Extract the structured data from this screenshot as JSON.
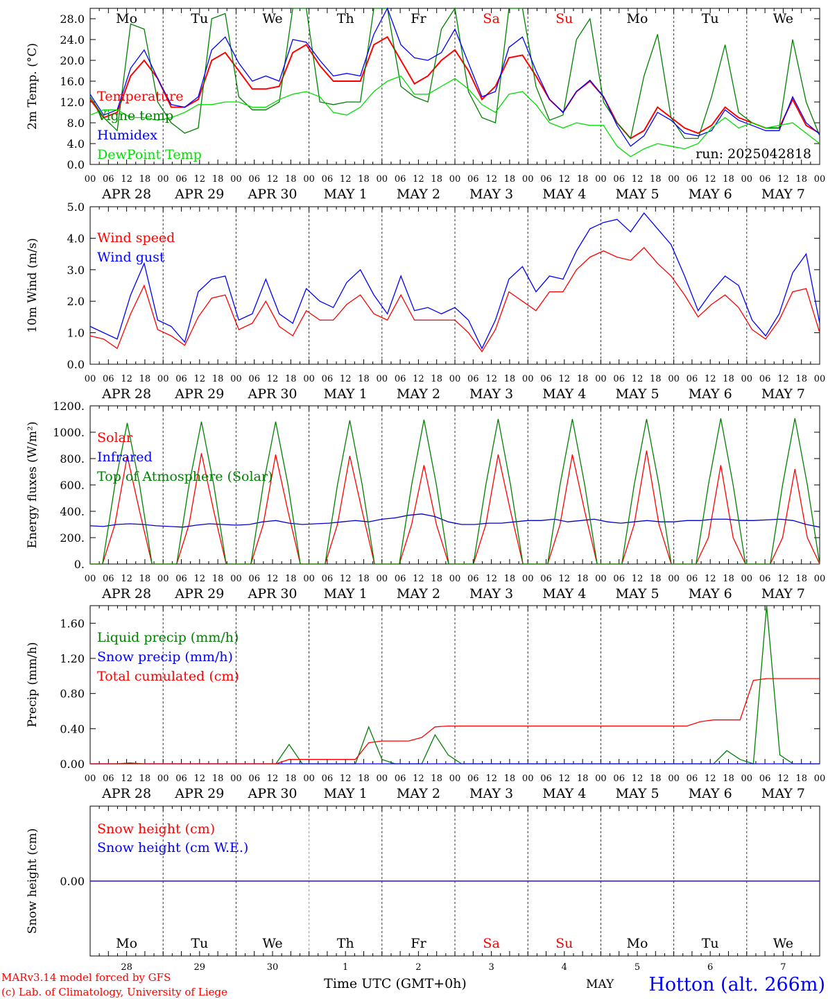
{
  "colors": {
    "red": "#ff0000",
    "green": "#008000",
    "lightgreen": "#00e000",
    "blue": "#0000ff",
    "darkblue": "#0000cc",
    "weekend": "#ff0000"
  },
  "days": [
    "Mo",
    "Tu",
    "We",
    "Th",
    "Fr",
    "Sa",
    "Su",
    "Mo",
    "Tu",
    "We"
  ],
  "weekend_days": [
    5,
    6
  ],
  "dates": [
    "APR 28",
    "APR 29",
    "APR 30",
    "MAY  1",
    "MAY  2",
    "MAY  3",
    "MAY  4",
    "MAY  5",
    "MAY  6",
    "MAY  7"
  ],
  "hour_ticks": [
    "00",
    "06",
    "12",
    "18"
  ],
  "final_tick": "00",
  "run_label": "run: 2025042818",
  "bottom": {
    "day_numbers": [
      "28",
      "29",
      "30",
      "1",
      "2",
      "3",
      "4",
      "5",
      "6",
      "7"
    ],
    "month": "MAY",
    "time_label": "Time UTC (GMT+0h)",
    "credit1": "MARv3.14 model forced by GFS",
    "credit2": "(c) Lab. of Climatology, University of Liege",
    "station": "Hotton (alt. 266m)"
  },
  "chart_data": [
    {
      "type": "line",
      "ylabel": "2m Temp. (°C)",
      "ylim": [
        0,
        30
      ],
      "yticks": [
        "0.0",
        "4.0",
        "8.0",
        "12.0",
        "16.0",
        "20.0",
        "24.0",
        "28.0"
      ],
      "ytick_values": [
        0,
        4,
        8,
        12,
        16,
        20,
        24,
        28
      ],
      "legend": [
        "Temperature",
        "Vigne temp",
        "Humidex",
        "DewPoint Temp"
      ],
      "x_hours_step": 6,
      "series": [
        {
          "name": "Temperature",
          "color": "red",
          "values": [
            12.5,
            9,
            10,
            17,
            20,
            16.5,
            11,
            11,
            12.5,
            20,
            21.5,
            18,
            14.5,
            14.5,
            15,
            21.5,
            23,
            19,
            16,
            16,
            16,
            23,
            24.5,
            20,
            15.5,
            17,
            20,
            22,
            18,
            12.5,
            15,
            20.5,
            21,
            17,
            12.5,
            10,
            14,
            16,
            13,
            8,
            5,
            6.5,
            11,
            9,
            7,
            6,
            7.5,
            11,
            9,
            8,
            7,
            7,
            12.5,
            7.5,
            6
          ]
        },
        {
          "name": "Vigne temp",
          "color": "green",
          "values": [
            13,
            9,
            6.5,
            27,
            26,
            12,
            8,
            6,
            7,
            28,
            29,
            13,
            10.5,
            10.5,
            12,
            30,
            30,
            12,
            11.5,
            12,
            12,
            30,
            30,
            15,
            13,
            12,
            26,
            30,
            14,
            9,
            8,
            30,
            30,
            15,
            8.5,
            9.5,
            24,
            28,
            12,
            8,
            5,
            17,
            25,
            9,
            5,
            5,
            13,
            23,
            10,
            8,
            7,
            7,
            24,
            12,
            5.5
          ]
        },
        {
          "name": "Humidex",
          "color": "blue",
          "values": [
            13.5,
            9.5,
            10.5,
            18.5,
            22,
            16.5,
            11.5,
            11,
            13,
            22,
            24.5,
            19.5,
            16,
            17,
            16,
            24,
            23.5,
            20,
            17,
            17.5,
            17,
            25,
            30,
            23,
            20.5,
            20,
            21.5,
            26,
            19.5,
            13,
            14,
            22.5,
            24.5,
            18,
            12.5,
            10,
            14,
            16.2,
            13,
            7.5,
            3.5,
            5.5,
            10,
            8.5,
            6,
            5.5,
            6.5,
            10.5,
            8.5,
            7.5,
            6.5,
            6.5,
            13,
            8,
            5.8
          ]
        },
        {
          "name": "DewPoint Temp",
          "color": "lightgreen",
          "values": [
            9.5,
            10.5,
            10.5,
            9,
            9,
            8.5,
            9,
            10,
            11.5,
            11.5,
            12,
            12,
            11,
            11,
            12.5,
            13.5,
            14,
            13,
            10,
            9.5,
            11,
            14,
            16,
            17,
            13.5,
            13.5,
            15,
            16.5,
            14.5,
            11.5,
            10,
            13.5,
            14,
            11.5,
            8,
            7,
            8,
            7.5,
            7.5,
            3.5,
            1.5,
            3,
            4,
            3.5,
            3,
            4,
            7,
            9,
            7,
            8,
            7,
            7.5,
            8,
            6,
            4
          ]
        }
      ]
    },
    {
      "type": "line",
      "ylabel": "10m Wind (m/s)",
      "ylim": [
        0,
        5
      ],
      "yticks": [
        "0.0",
        "1.0",
        "2.0",
        "3.0",
        "4.0",
        "5.0"
      ],
      "ytick_values": [
        0,
        1,
        2,
        3,
        4,
        5
      ],
      "legend": [
        "Wind speed",
        "Wind gust"
      ],
      "x_hours_step": 6,
      "series": [
        {
          "name": "Wind speed",
          "color": "red",
          "values": [
            0.9,
            0.8,
            0.5,
            1.6,
            2.5,
            1.1,
            0.9,
            0.6,
            1.5,
            2.1,
            2.2,
            1.1,
            1.3,
            2.0,
            1.2,
            0.9,
            1.7,
            1.4,
            1.4,
            1.9,
            2.2,
            1.6,
            1.4,
            2.2,
            1.4,
            1.4,
            1.4,
            1.4,
            1.0,
            0.4,
            1.1,
            2.3,
            2.0,
            1.7,
            2.3,
            2.3,
            3.0,
            3.4,
            3.6,
            3.4,
            3.3,
            3.7,
            3.2,
            2.8,
            2.2,
            1.5,
            1.9,
            2.2,
            1.8,
            1.1,
            0.8,
            1.4,
            2.3,
            2.4,
            1.0
          ]
        },
        {
          "name": "Wind gust",
          "color": "blue",
          "values": [
            1.2,
            1.0,
            0.8,
            2.2,
            3.2,
            1.4,
            1.2,
            0.7,
            2.3,
            2.7,
            2.8,
            1.4,
            1.6,
            2.7,
            1.6,
            1.3,
            2.4,
            2.0,
            1.8,
            2.6,
            3.0,
            2.2,
            1.6,
            2.8,
            1.7,
            1.8,
            1.6,
            1.8,
            1.4,
            0.5,
            1.4,
            2.7,
            3.1,
            2.3,
            2.8,
            2.7,
            3.6,
            4.3,
            4.5,
            4.6,
            4.2,
            4.8,
            4.3,
            3.8,
            2.8,
            1.7,
            2.3,
            2.8,
            2.5,
            1.4,
            0.9,
            1.6,
            2.9,
            3.5,
            1.3
          ]
        }
      ]
    },
    {
      "type": "line",
      "ylabel": "Energy fluxes (W/m²)",
      "ylim": [
        0,
        1200
      ],
      "yticks": [
        "0.",
        "200.",
        "400.",
        "600.",
        "800.",
        "1000.",
        "1200."
      ],
      "ytick_values": [
        0,
        200,
        400,
        600,
        800,
        1000,
        1200
      ],
      "legend": [
        "Solar",
        "Infrared",
        "Top of Atmosphere (Solar)"
      ],
      "x_hours_step": 6,
      "series": [
        {
          "name": "Solar",
          "color": "red",
          "values": [
            0,
            0,
            300,
            820,
            400,
            0,
            0,
            0,
            300,
            840,
            400,
            0,
            0,
            0,
            300,
            830,
            400,
            0,
            0,
            0,
            300,
            820,
            400,
            0,
            0,
            0,
            300,
            750,
            300,
            0,
            0,
            0,
            300,
            830,
            400,
            0,
            0,
            0,
            300,
            830,
            400,
            0,
            0,
            0,
            300,
            860,
            300,
            0,
            0,
            0,
            200,
            750,
            200,
            0,
            0,
            0,
            200,
            720,
            200,
            0
          ]
        },
        {
          "name": "Infrared",
          "color": "darkblue",
          "values": [
            290,
            285,
            300,
            305,
            300,
            290,
            285,
            280,
            295,
            305,
            300,
            295,
            300,
            320,
            330,
            310,
            300,
            305,
            310,
            320,
            330,
            320,
            340,
            350,
            370,
            380,
            360,
            320,
            300,
            300,
            310,
            310,
            320,
            330,
            330,
            340,
            320,
            330,
            340,
            320,
            310,
            320,
            330,
            320,
            320,
            330,
            330,
            340,
            340,
            330,
            330,
            335,
            340,
            330,
            300,
            280
          ]
        },
        {
          "name": "Top of Atmosphere (Solar)",
          "color": "green",
          "values": [
            0,
            0,
            600,
            1070,
            600,
            0,
            0,
            0,
            600,
            1080,
            600,
            0,
            0,
            0,
            600,
            1080,
            600,
            0,
            0,
            0,
            600,
            1090,
            600,
            0,
            0,
            0,
            600,
            1095,
            600,
            0,
            0,
            0,
            600,
            1100,
            600,
            0,
            0,
            0,
            600,
            1100,
            600,
            0,
            0,
            0,
            600,
            1100,
            600,
            0,
            0,
            0,
            600,
            1105,
            600,
            0,
            0,
            0,
            600,
            1105,
            600,
            0
          ]
        }
      ]
    },
    {
      "type": "line",
      "ylabel": "Precip (mm/h)",
      "ylim": [
        0,
        1.8
      ],
      "yticks": [
        "0.00",
        "0.40",
        "0.80",
        "1.20",
        "1.60"
      ],
      "ytick_values": [
        0,
        0.4,
        0.8,
        1.2,
        1.6
      ],
      "legend": [
        "Liquid precip (mm/h)",
        "Snow precip (mm/h)",
        "Total cumulated (cm)"
      ],
      "x_hours_step": 6,
      "series": [
        {
          "name": "Liquid precip (mm/h)",
          "color": "green",
          "values": [
            0,
            0,
            0,
            0.01,
            0,
            0,
            0,
            0,
            0,
            0,
            0,
            0,
            0,
            0,
            0,
            0.22,
            0,
            0,
            0,
            0,
            0,
            0.42,
            0.05,
            0,
            0,
            0,
            0.33,
            0.1,
            0,
            0,
            0,
            0,
            0,
            0,
            0,
            0,
            0,
            0,
            0,
            0,
            0,
            0,
            0,
            0,
            0,
            0,
            0,
            0,
            0.15,
            0.05,
            0,
            1.8,
            0.1,
            0,
            0,
            0
          ]
        },
        {
          "name": "Snow precip (mm/h)",
          "color": "blue",
          "values": [
            0,
            0,
            0,
            0,
            0,
            0,
            0,
            0,
            0,
            0,
            0,
            0,
            0,
            0,
            0,
            0,
            0,
            0,
            0,
            0,
            0,
            0,
            0,
            0,
            0,
            0,
            0,
            0,
            0,
            0,
            0,
            0,
            0,
            0,
            0,
            0,
            0,
            0,
            0,
            0,
            0,
            0,
            0,
            0,
            0,
            0,
            0,
            0,
            0,
            0,
            0,
            0,
            0,
            0,
            0,
            0
          ]
        },
        {
          "name": "Total cumulated (cm)",
          "color": "red",
          "values": [
            0,
            0,
            0,
            0,
            0,
            0,
            0,
            0,
            0,
            0,
            0,
            0,
            0,
            0,
            0,
            0.05,
            0.05,
            0.05,
            0.05,
            0.05,
            0.05,
            0.24,
            0.26,
            0.26,
            0.26,
            0.3,
            0.42,
            0.43,
            0.43,
            0.43,
            0.43,
            0.43,
            0.43,
            0.43,
            0.43,
            0.43,
            0.43,
            0.43,
            0.43,
            0.43,
            0.43,
            0.43,
            0.43,
            0.43,
            0.43,
            0.43,
            0.48,
            0.5,
            0.5,
            0.5,
            0.95,
            0.97,
            0.97,
            0.97,
            0.97,
            0.97
          ]
        }
      ]
    },
    {
      "type": "line",
      "ylabel": "Snow height (cm)",
      "ylim": [
        -1,
        1
      ],
      "yticks": [
        "0.00"
      ],
      "ytick_values": [
        0
      ],
      "legend": [
        "Snow height (cm)",
        "Snow height (cm W.E.)"
      ],
      "x_hours_step": 6,
      "series": [
        {
          "name": "Snow height (cm)",
          "color": "red",
          "values": [
            0,
            0
          ]
        },
        {
          "name": "Snow height (cm W.E.)",
          "color": "blue",
          "values": [
            0,
            0
          ]
        }
      ]
    }
  ]
}
